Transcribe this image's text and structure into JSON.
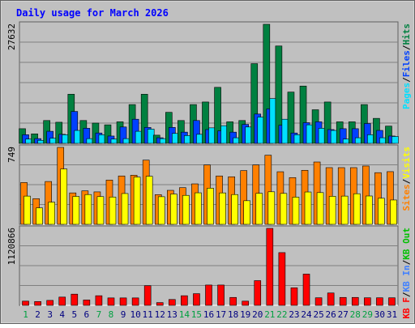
{
  "title": "Daily usage for March 2026",
  "colors": {
    "background": "#c0c0c0",
    "title": "#0000ff",
    "grid": "#808080",
    "hits": "#008040",
    "files": "#0040ff",
    "pages": "#00e0ff",
    "visits": "#ffff00",
    "sites": "#ff8000",
    "kbin": "#4080ff",
    "kbout": "#00c000",
    "kbf": "#ff0000",
    "weekend": "#00a040",
    "day": "#000080"
  },
  "chart_data": [
    {
      "type": "bar",
      "name": "hits-files-pages",
      "ylabel_max": "27632",
      "ymax": 27632,
      "categories": [
        "1",
        "2",
        "3",
        "4",
        "5",
        "6",
        "7",
        "8",
        "9",
        "10",
        "11",
        "12",
        "13",
        "14",
        "15",
        "16",
        "17",
        "18",
        "19",
        "20",
        "21",
        "22",
        "23",
        "24",
        "25",
        "26",
        "27",
        "28",
        "29",
        "30",
        "31"
      ],
      "weekend": [
        1,
        7,
        8,
        14,
        15,
        21,
        22,
        28,
        29
      ],
      "legend": [
        {
          "label": "Pages",
          "color": "#00e0ff"
        },
        {
          "label": "Files",
          "color": "#0040ff"
        },
        {
          "label": "Hits",
          "color": "#008040"
        }
      ],
      "separator": "/",
      "series": [
        {
          "name": "Hits",
          "color": "#008040",
          "values": [
            3400,
            2200,
            5300,
            4900,
            11400,
            5300,
            4700,
            4300,
            5000,
            9000,
            11400,
            1900,
            7200,
            5300,
            9000,
            9600,
            13000,
            5000,
            5300,
            18500,
            27632,
            22600,
            11900,
            13300,
            7800,
            9600,
            5000,
            5000,
            9000,
            5800,
            4000
          ]
        },
        {
          "label": "",
          "name": "Files",
          "color": "#0040ff",
          "values": [
            2000,
            1100,
            2800,
            2100,
            7400,
            3500,
            2400,
            1700,
            3800,
            5600,
            3700,
            1300,
            3700,
            2600,
            5300,
            3200,
            2900,
            2600,
            4400,
            6800,
            8000,
            4200,
            2400,
            4800,
            5000,
            3200,
            3400,
            3400,
            4600,
            3000,
            1700
          ]
        },
        {
          "name": "Pages",
          "color": "#00e0ff",
          "values": [
            1000,
            700,
            1200,
            2000,
            3000,
            1100,
            2000,
            1000,
            1100,
            2800,
            3300,
            1100,
            2300,
            1800,
            2100,
            3600,
            4100,
            1300,
            3800,
            6100,
            10400,
            5600,
            2000,
            4300,
            3500,
            3000,
            1000,
            1300,
            2000,
            1300,
            1600
          ]
        }
      ]
    },
    {
      "type": "bar",
      "name": "visits-sites",
      "ylabel_max": "749",
      "ymax": 749,
      "legend": [
        {
          "label": "Sites",
          "color": "#ff8000"
        },
        {
          "label": "Visits",
          "color": "#ffff00"
        }
      ],
      "separator": "/",
      "series": [
        {
          "name": "Sites",
          "color": "#ff8000",
          "values": [
            407,
            250,
            417,
            749,
            306,
            326,
            316,
            431,
            471,
            478,
            625,
            289,
            331,
            357,
            394,
            578,
            471,
            463,
            523,
            578,
            673,
            512,
            455,
            526,
            607,
            552,
            552,
            552,
            568,
            503,
            513
          ]
        },
        {
          "name": "Visits",
          "color": "#ffff00",
          "values": [
            275,
            160,
            216,
            539,
            272,
            290,
            270,
            266,
            300,
            460,
            468,
            269,
            295,
            282,
            307,
            352,
            306,
            290,
            230,
            302,
            317,
            301,
            265,
            315,
            309,
            273,
            275,
            298,
            276,
            254,
            237
          ]
        }
      ]
    },
    {
      "type": "bar",
      "name": "kbytes",
      "ylabel_max": "1120866",
      "ymax": 1120866,
      "legend": [
        {
          "label": "KB F",
          "color": "#ff0000"
        },
        {
          "label": "KB In",
          "color": "#4080ff"
        },
        {
          "label": "KB Out",
          "color": "#00c000"
        }
      ],
      "separator": "/",
      "series": [
        {
          "name": "KB F",
          "color": "#ff0000",
          "values": [
            61000,
            55000,
            72000,
            120000,
            163000,
            78000,
            140000,
            108000,
            108000,
            108000,
            286000,
            40000,
            85000,
            140000,
            170000,
            296000,
            296000,
            115000,
            61000,
            360000,
            1120866,
            768000,
            255000,
            455000,
            110000,
            180000,
            115000,
            115000,
            110000,
            110000,
            110000
          ]
        }
      ]
    }
  ]
}
